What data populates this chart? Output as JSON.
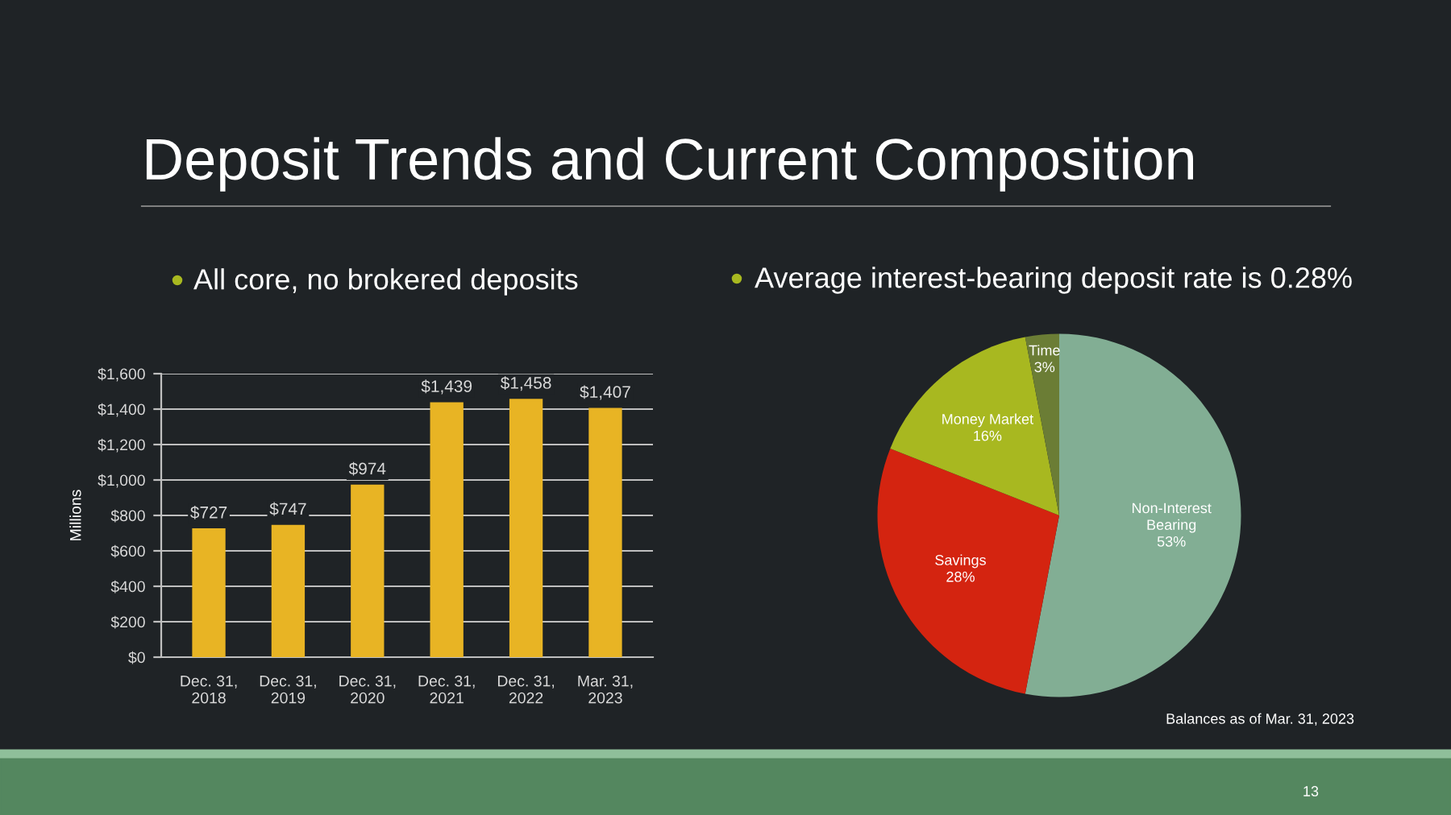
{
  "chart_data": [
    {
      "type": "bar",
      "title": "Deposit Trends and Current Composition",
      "subtitle": "All core, no brokered deposits",
      "ylabel": "Millions",
      "categories": [
        "Dec. 31,\n2018",
        "Dec. 31,\n2019",
        "Dec. 31,\n2020",
        "Dec. 31,\n2021",
        "Dec. 31,\n2022",
        "Mar. 31,\n2023"
      ],
      "values": [
        727,
        747,
        974,
        1439,
        1458,
        1407
      ],
      "color": "#e8b424",
      "value_labels": [
        "$727",
        "$747",
        "$974",
        "$1,439",
        "$1,458",
        "$1,407"
      ],
      "ylim": [
        0,
        1600
      ],
      "yticks": [
        {
          "value": 0,
          "label": "$0"
        },
        {
          "value": 200,
          "label": "$200"
        },
        {
          "value": 400,
          "label": "$400"
        },
        {
          "value": 600,
          "label": "$600"
        },
        {
          "value": 800,
          "label": "$800"
        },
        {
          "value": 1000,
          "label": "$1,000"
        },
        {
          "value": 1200,
          "label": "$1,200"
        },
        {
          "value": 1400,
          "label": "$1,400"
        },
        {
          "value": 1600,
          "label": "$1,600"
        }
      ],
      "grid": "y"
    },
    {
      "type": "pie",
      "subtitle": "Average interest-bearing deposit rate is 0.28%",
      "categories": [
        "Non-Interest\nBearing",
        "Savings",
        "Money Market",
        "Time"
      ],
      "values": [
        53,
        28,
        16,
        3
      ],
      "colors": [
        "#82ae94",
        "#d42410",
        "#a8b820",
        "#6b7d35"
      ],
      "value_labels": [
        "53%",
        "28%",
        "16%",
        "3%"
      ],
      "annotations": [
        "Balances as of Mar. 31, 2023",
        "13"
      ]
    }
  ]
}
